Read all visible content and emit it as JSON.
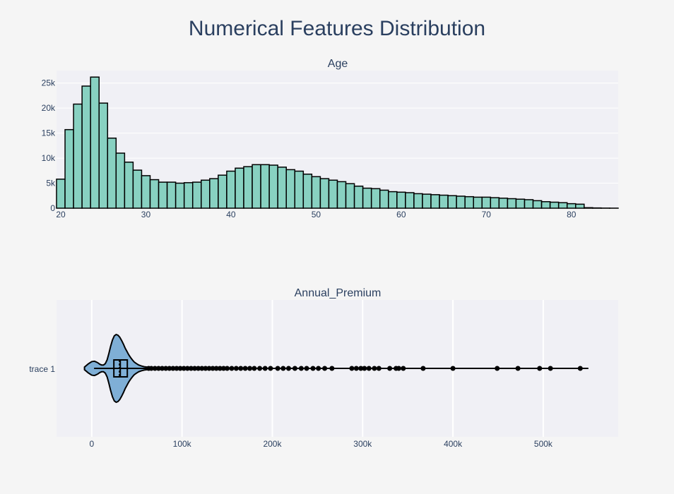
{
  "title": "Numerical Features Distribution",
  "chart_data": [
    {
      "type": "bar",
      "subtitle": "Age",
      "bar_color": "#88d1c1",
      "edge_color": "#000000",
      "plot_bg": "#f0f0f5",
      "grid": true,
      "x_ticks": [
        20,
        30,
        40,
        50,
        60,
        70,
        80
      ],
      "x_tick_labels": [
        "20",
        "30",
        "40",
        "50",
        "60",
        "70",
        "80"
      ],
      "y_ticks": [
        0,
        5000,
        10000,
        15000,
        20000,
        25000
      ],
      "y_tick_labels": [
        "0",
        "5k",
        "10k",
        "15k",
        "20k",
        "25k"
      ],
      "xlim": [
        19.5,
        85.5
      ],
      "ylim": [
        0,
        27500
      ],
      "bin_width": 1,
      "bin_start": 20,
      "values": [
        5800,
        15700,
        20800,
        24400,
        26200,
        21000,
        14000,
        11000,
        9200,
        7600,
        6500,
        5700,
        5200,
        5200,
        5000,
        5100,
        5200,
        5600,
        5900,
        6600,
        7400,
        8000,
        8300,
        8700,
        8700,
        8600,
        8200,
        7700,
        7400,
        6800,
        6300,
        5900,
        5600,
        5300,
        4900,
        4400,
        4000,
        3900,
        3600,
        3300,
        3200,
        3100,
        2900,
        2800,
        2700,
        2600,
        2500,
        2400,
        2300,
        2200,
        2200,
        2100,
        2000,
        1900,
        1800,
        1700,
        1500,
        1300,
        1200,
        1100,
        900,
        800,
        100,
        50,
        20,
        10
      ]
    },
    {
      "type": "violin",
      "subtitle": "Annual_Premium",
      "trace_name": "trace 1",
      "fill_color": "#7fafd6",
      "line_color": "#000000",
      "plot_bg": "#f0f0f5",
      "grid": true,
      "x_ticks": [
        0,
        100000,
        200000,
        300000,
        400000,
        500000
      ],
      "x_tick_labels": [
        "0",
        "100k",
        "200k",
        "300k",
        "400k",
        "500k"
      ],
      "xlim": [
        -39000,
        583000
      ],
      "kde": {
        "x": [
          -8000,
          -4000,
          0,
          3000,
          5000,
          7000,
          9000,
          11000,
          13000,
          15000,
          17000,
          19000,
          21000,
          23000,
          25000,
          27000,
          29000,
          31000,
          33000,
          35000,
          37000,
          39000,
          41000,
          43000,
          45000,
          47000,
          49000,
          52000,
          55000,
          58000,
          61000,
          64000,
          68000,
          72000
        ],
        "density": [
          0.04,
          0.13,
          0.2,
          0.21,
          0.19,
          0.16,
          0.12,
          0.1,
          0.1,
          0.14,
          0.25,
          0.44,
          0.66,
          0.84,
          0.96,
          1.0,
          0.98,
          0.92,
          0.83,
          0.72,
          0.6,
          0.5,
          0.4,
          0.32,
          0.25,
          0.19,
          0.15,
          0.1,
          0.07,
          0.05,
          0.04,
          0.03,
          0.02,
          0.01
        ]
      },
      "box": {
        "q1": 24500,
        "median": 31600,
        "q3": 39400,
        "whisker_low": 2600,
        "whisker_high": 61500
      },
      "mean": 30600,
      "line_max": 550000,
      "outliers": [
        63000,
        66000,
        70000,
        74000,
        78000,
        82000,
        86000,
        90000,
        94000,
        98000,
        102000,
        106000,
        110000,
        114000,
        118000,
        122000,
        126000,
        130000,
        134000,
        138000,
        142000,
        146000,
        150000,
        155000,
        160000,
        165000,
        170000,
        175000,
        180000,
        186000,
        192000,
        198000,
        206000,
        212000,
        218000,
        225000,
        232000,
        238000,
        245000,
        251000,
        258000,
        266000,
        288000,
        293000,
        298000,
        302000,
        307000,
        313000,
        318000,
        330000,
        337000,
        340000,
        345000,
        367000,
        400000,
        449000,
        472000,
        496000,
        508000,
        541000
      ]
    }
  ]
}
